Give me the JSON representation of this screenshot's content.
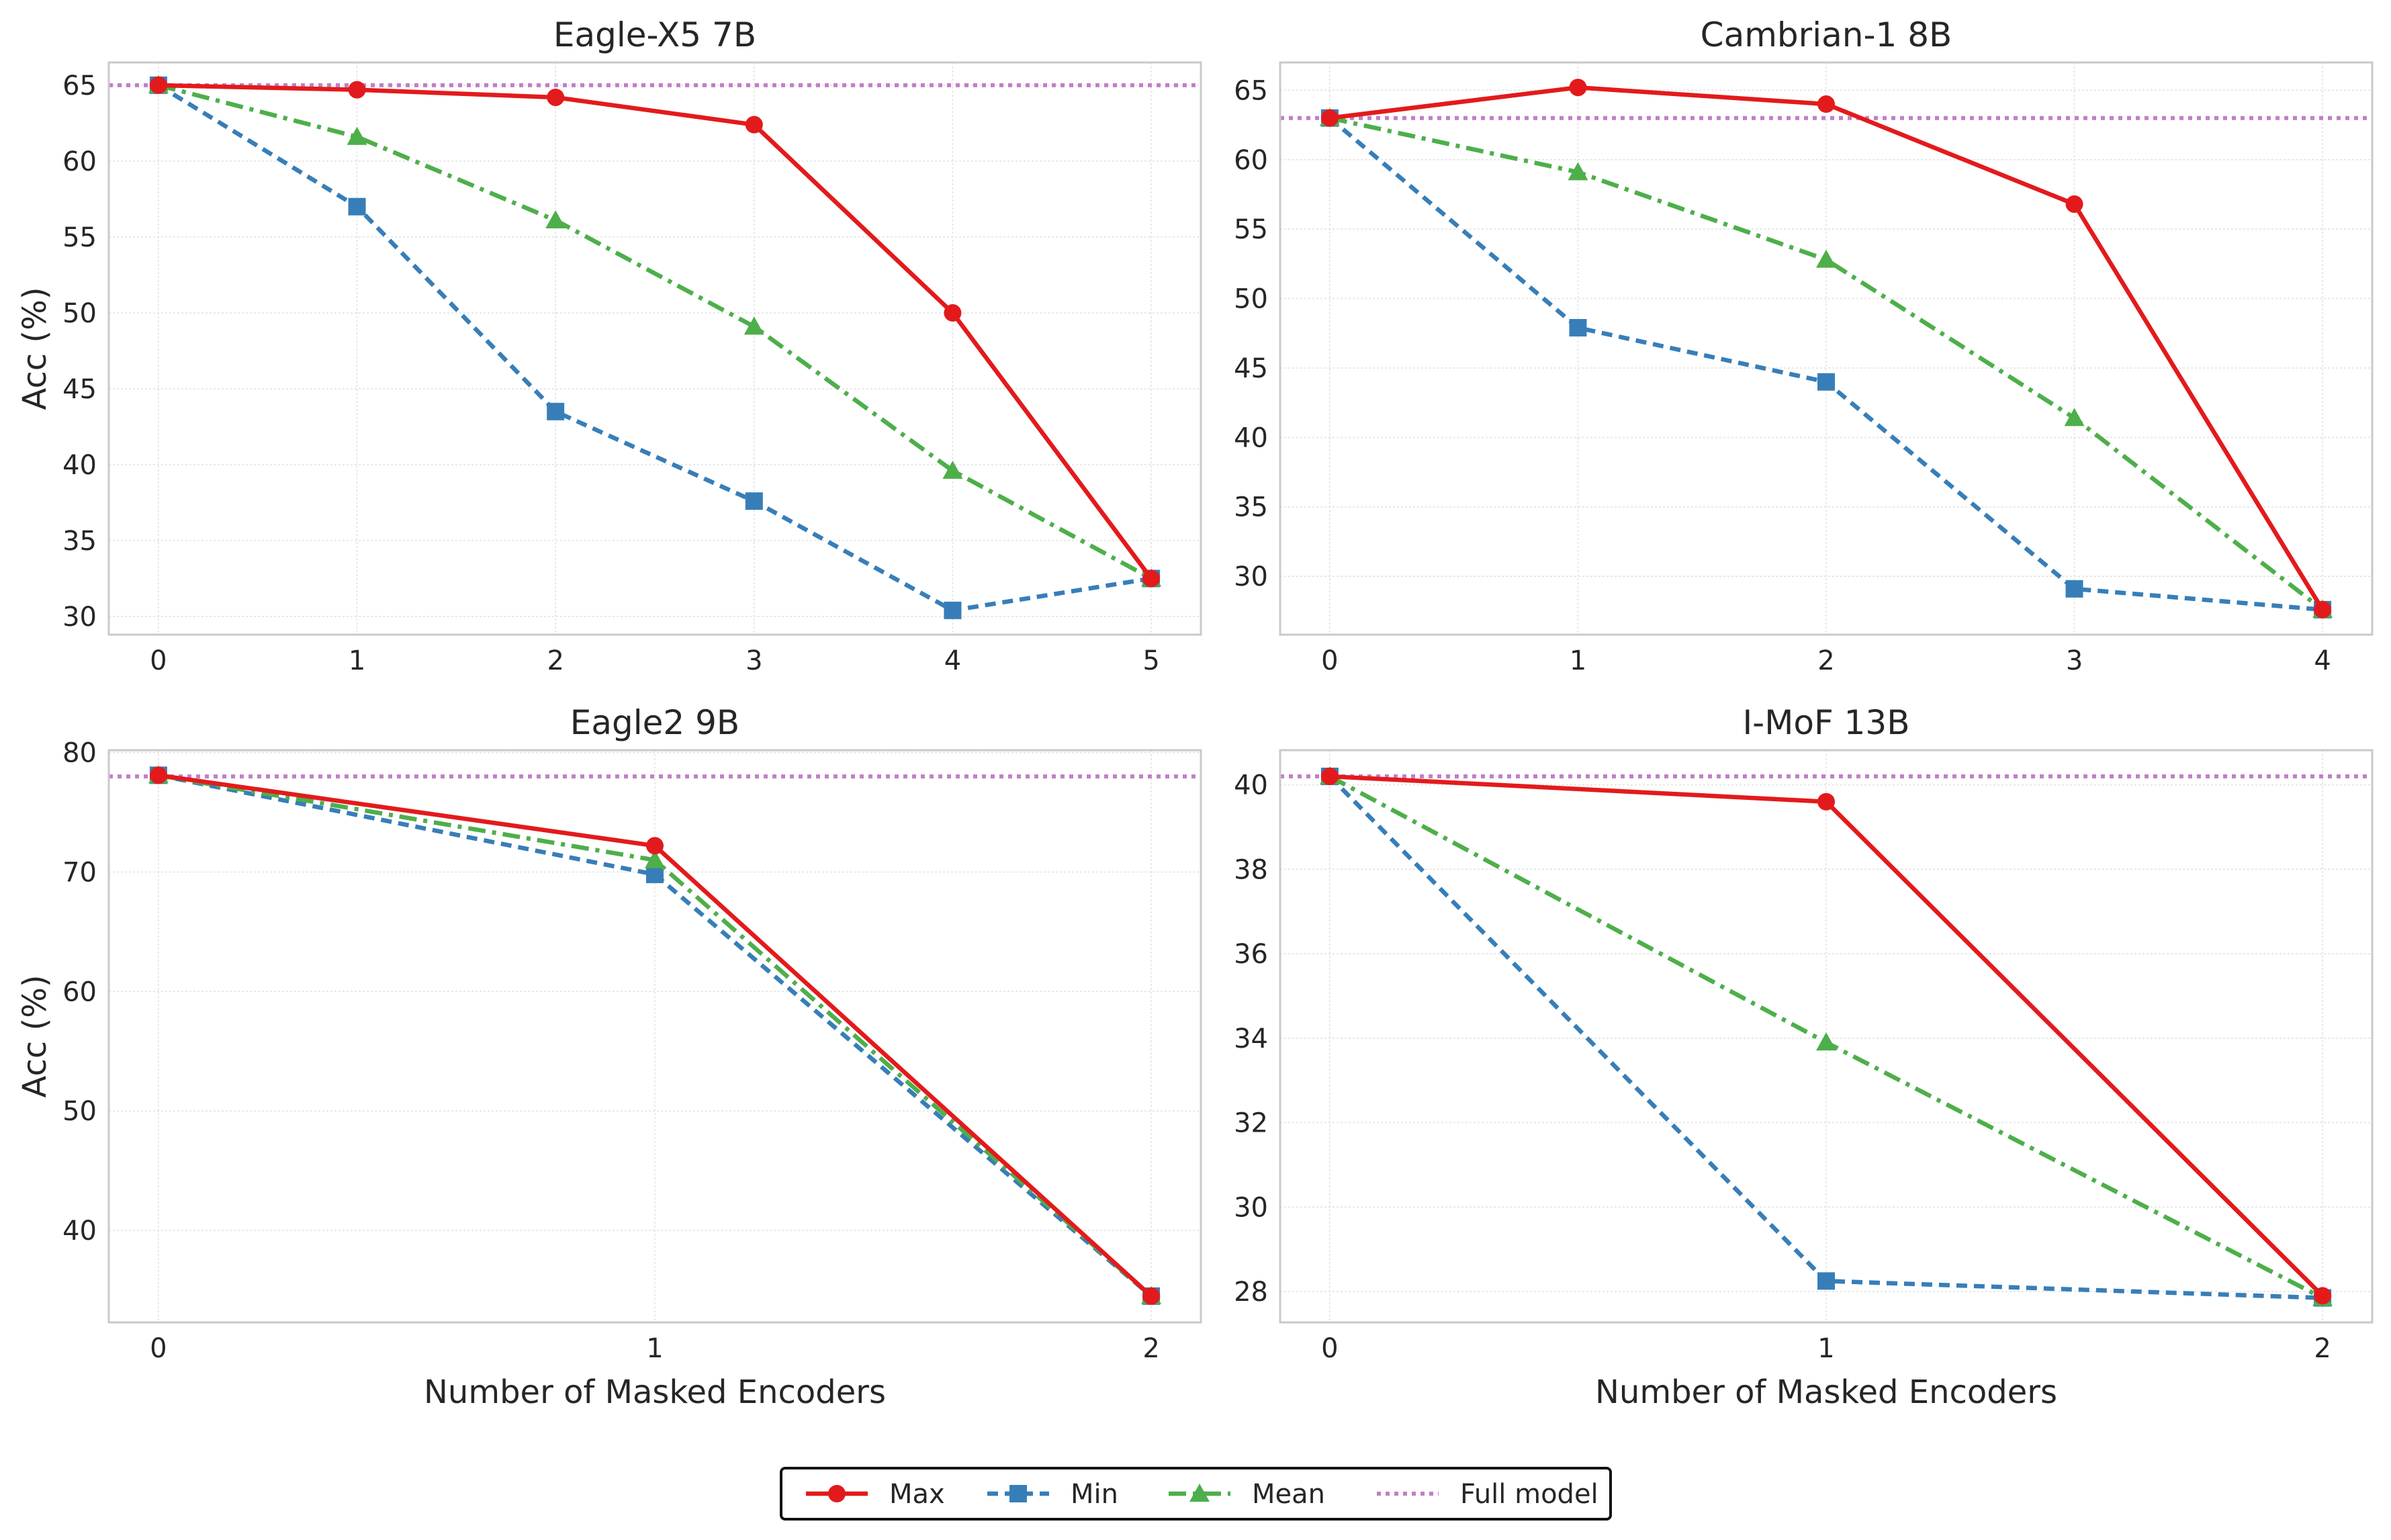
{
  "colors": {
    "Max": "#e31a1c",
    "Min": "#377eb8",
    "Mean": "#4daf4a",
    "Full model": "#c17fc7"
  },
  "chart_data": [
    {
      "type": "line",
      "title": "Eagle-X5 7B",
      "xlabel": "",
      "ylabel": "Acc (%)",
      "x": [
        0,
        1,
        2,
        3,
        4,
        5
      ],
      "xlim": [
        -0.25,
        5.25
      ],
      "ylim": [
        28.8,
        66.5
      ],
      "yticks": [
        30,
        35,
        40,
        45,
        50,
        55,
        60,
        65
      ],
      "grid": true,
      "series": [
        {
          "name": "Max",
          "values": [
            65.0,
            64.7,
            64.2,
            62.4,
            50.0,
            32.5
          ]
        },
        {
          "name": "Min",
          "values": [
            65.0,
            57.0,
            43.5,
            37.6,
            30.4,
            32.5
          ]
        },
        {
          "name": "Mean",
          "values": [
            65.0,
            61.6,
            56.1,
            49.1,
            39.6,
            32.5
          ]
        }
      ],
      "reference": {
        "name": "Full model",
        "value": 65.0
      }
    },
    {
      "type": "line",
      "title": "Cambrian-1 8B",
      "xlabel": "",
      "ylabel": "",
      "x": [
        0,
        1,
        2,
        3,
        4
      ],
      "xlim": [
        -0.2,
        4.2
      ],
      "ylim": [
        25.8,
        67.0
      ],
      "yticks": [
        30,
        35,
        40,
        45,
        50,
        55,
        60,
        65
      ],
      "grid": true,
      "series": [
        {
          "name": "Max",
          "values": [
            63.0,
            65.2,
            64.0,
            56.8,
            27.6
          ]
        },
        {
          "name": "Min",
          "values": [
            63.0,
            47.9,
            44.0,
            29.1,
            27.6
          ]
        },
        {
          "name": "Mean",
          "values": [
            63.0,
            59.1,
            52.8,
            41.4,
            27.6
          ]
        }
      ],
      "reference": {
        "name": "Full model",
        "value": 63.0
      }
    },
    {
      "type": "line",
      "title": "Eagle2 9B",
      "xlabel": "Number of Masked Encoders",
      "ylabel": "Acc (%)",
      "x": [
        0,
        1,
        2
      ],
      "xlim": [
        -0.1,
        2.1
      ],
      "ylim": [
        32.3,
        80.2
      ],
      "yticks": [
        40,
        50,
        60,
        70,
        80
      ],
      "grid": true,
      "series": [
        {
          "name": "Max",
          "values": [
            78.1,
            72.2,
            34.5
          ]
        },
        {
          "name": "Min",
          "values": [
            78.1,
            69.8,
            34.5
          ]
        },
        {
          "name": "Mean",
          "values": [
            78.1,
            71.0,
            34.5
          ]
        }
      ],
      "reference": {
        "name": "Full model",
        "value": 78.0
      }
    },
    {
      "type": "line",
      "title": "I-MoF 13B",
      "xlabel": "Number of Masked Encoders",
      "ylabel": "",
      "x": [
        0,
        1,
        2
      ],
      "xlim": [
        -0.1,
        2.1
      ],
      "ylim": [
        27.27,
        40.82
      ],
      "yticks": [
        28,
        30,
        32,
        34,
        36,
        38,
        40
      ],
      "grid": true,
      "series": [
        {
          "name": "Max",
          "values": [
            40.2,
            39.6,
            27.9
          ]
        },
        {
          "name": "Min",
          "values": [
            40.2,
            28.25,
            27.85
          ]
        },
        {
          "name": "Mean",
          "values": [
            40.2,
            33.9,
            27.85
          ]
        }
      ],
      "reference": {
        "name": "Full model",
        "value": 40.2
      }
    }
  ],
  "legend": {
    "position": "bottom-center",
    "entries": [
      "Max",
      "Min",
      "Mean",
      "Full model"
    ]
  }
}
